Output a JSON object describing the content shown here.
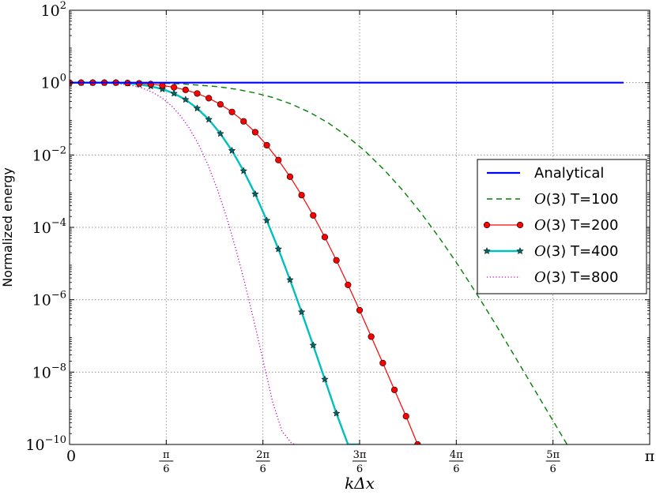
{
  "chart_data": {
    "type": "line",
    "title": "",
    "xlabel": "kΔx",
    "ylabel": "Normalized energy",
    "xlim": [
      0,
      3.14159265
    ],
    "ylim_log10": [
      -10,
      2
    ],
    "yscale": "log",
    "grid": true,
    "legend_position": "right",
    "x_ticks": [
      {
        "value": 0,
        "label": "0",
        "kind": "plain"
      },
      {
        "value": 0.5236,
        "num": "π",
        "den": "6",
        "kind": "frac"
      },
      {
        "value": 1.0472,
        "num": "2π",
        "den": "6",
        "kind": "frac"
      },
      {
        "value": 1.5708,
        "num": "3π",
        "den": "6",
        "kind": "frac"
      },
      {
        "value": 2.0944,
        "num": "4π",
        "den": "6",
        "kind": "frac"
      },
      {
        "value": 2.618,
        "num": "5π",
        "den": "6",
        "kind": "frac"
      },
      {
        "value": 3.14159265,
        "label": "π",
        "kind": "plain"
      }
    ],
    "y_ticks": [
      {
        "exp": 2,
        "base": "10",
        "sup": "2"
      },
      {
        "exp": 0,
        "base": "10",
        "sup": "0"
      },
      {
        "exp": -2,
        "base": "10",
        "sup": "−2"
      },
      {
        "exp": -4,
        "base": "10",
        "sup": "−4"
      },
      {
        "exp": -6,
        "base": "10",
        "sup": "−6"
      },
      {
        "exp": -8,
        "base": "10",
        "sup": "−8"
      },
      {
        "exp": -10,
        "base": "10",
        "sup": "−10"
      }
    ],
    "series": [
      {
        "name": "Analytical",
        "legend_math": "",
        "legend_rest": "Analytical",
        "color": "#0000ff",
        "style": "solid",
        "width": 2.2,
        "marker": "none",
        "x": [
          0,
          3.0
        ],
        "log10_y": [
          0,
          0
        ]
      },
      {
        "name": "O(3) T=100",
        "legend_math": "O",
        "legend_rest": "(3) T=100",
        "color": "#007f00",
        "style": "dashed",
        "width": 1.4,
        "marker": "none",
        "x": [
          0,
          0.2,
          0.4,
          0.6,
          0.8,
          0.9,
          1.0,
          1.1,
          1.2,
          1.3,
          1.4,
          1.5,
          1.6,
          1.7,
          1.8,
          1.9,
          2.0,
          2.1,
          2.2,
          2.3,
          2.4,
          2.5,
          2.55,
          2.6,
          2.65,
          2.7
        ],
        "log10_y": [
          0,
          0,
          0,
          -0.03,
          -0.11,
          -0.18,
          -0.28,
          -0.41,
          -0.59,
          -0.82,
          -1.11,
          -1.47,
          -1.89,
          -2.39,
          -2.95,
          -3.58,
          -4.27,
          -5.01,
          -5.8,
          -6.62,
          -7.47,
          -8.33,
          -8.76,
          -9.19,
          -9.62,
          -10.05
        ]
      },
      {
        "name": "O(3) T=200",
        "legend_math": "O",
        "legend_rest": "(3) T=200",
        "color": "#ff0000",
        "style": "solid",
        "width": 1.2,
        "marker": "circle",
        "marker_fill": "#ff0000",
        "x": [
          0,
          0.0628,
          0.1257,
          0.1885,
          0.2513,
          0.3142,
          0.377,
          0.4398,
          0.5027,
          0.5655,
          0.6283,
          0.6912,
          0.754,
          0.8168,
          0.8796,
          0.9425,
          1.0053,
          1.0681,
          1.131,
          1.1938,
          1.2566,
          1.3195,
          1.3823,
          1.4451,
          1.508,
          1.5708,
          1.6336,
          1.6965,
          1.7593,
          1.8221,
          1.885
        ],
        "log10_y": [
          0,
          0,
          0,
          0,
          0,
          -0.01,
          -0.02,
          -0.04,
          -0.08,
          -0.13,
          -0.2,
          -0.3,
          -0.43,
          -0.6,
          -0.81,
          -1.07,
          -1.37,
          -1.73,
          -2.14,
          -2.6,
          -3.11,
          -3.67,
          -4.27,
          -4.91,
          -5.59,
          -6.29,
          -7.02,
          -7.75,
          -8.49,
          -9.22,
          -10.0
        ]
      },
      {
        "name": "O(3) T=400",
        "legend_math": "O",
        "legend_rest": "(3) T=400",
        "color": "#00bfbf",
        "style": "solid",
        "width": 2.4,
        "marker": "star",
        "marker_fill": "#006666",
        "x": [
          0,
          0.0628,
          0.1257,
          0.1885,
          0.2513,
          0.3142,
          0.377,
          0.4398,
          0.5027,
          0.5655,
          0.6283,
          0.6912,
          0.754,
          0.8168,
          0.8796,
          0.9425,
          1.0053,
          1.0681,
          1.131,
          1.1938,
          1.2566,
          1.3195,
          1.3823,
          1.4451,
          1.508,
          1.5708
        ],
        "log10_y": [
          0,
          0,
          0,
          0,
          0,
          -0.02,
          -0.05,
          -0.1,
          -0.18,
          -0.3,
          -0.47,
          -0.71,
          -1.02,
          -1.41,
          -1.88,
          -2.44,
          -3.08,
          -3.81,
          -4.6,
          -5.45,
          -6.34,
          -7.26,
          -8.2,
          -9.14,
          -10.0,
          -10.0
        ],
        "marker_count": 24
      },
      {
        "name": "O(3) T=800",
        "legend_math": "O",
        "legend_rest": "(3) T=800",
        "color": "#bf00bf",
        "style": "dotted",
        "width": 1.3,
        "marker": "none",
        "x": [
          0,
          0.1,
          0.2,
          0.3,
          0.35,
          0.4,
          0.45,
          0.5,
          0.55,
          0.6,
          0.65,
          0.7,
          0.75,
          0.8,
          0.85,
          0.9,
          0.95,
          1.0,
          1.05,
          1.1,
          1.15,
          1.2,
          1.225
        ],
        "log10_y": [
          0,
          0,
          -0.01,
          -0.05,
          -0.09,
          -0.16,
          -0.27,
          -0.42,
          -0.63,
          -0.91,
          -1.27,
          -1.72,
          -2.28,
          -2.94,
          -3.71,
          -4.59,
          -5.56,
          -6.62,
          -7.72,
          -8.83,
          -9.63,
          -9.95,
          -10.02
        ]
      }
    ]
  }
}
